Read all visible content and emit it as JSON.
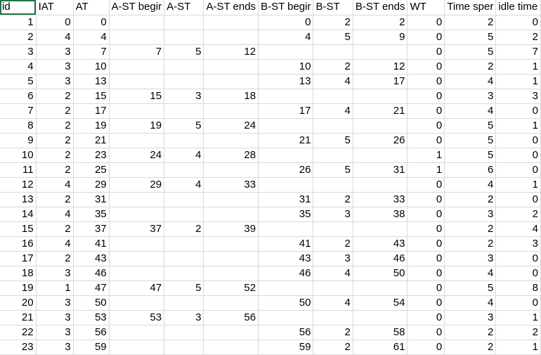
{
  "sheet": {
    "headers": [
      "id",
      "IAT",
      "AT",
      "A-ST begir",
      "A-ST",
      "A-ST ends",
      "B-ST begir",
      "B-ST",
      "B-ST ends",
      "WT",
      "Time sper",
      "idle time"
    ],
    "rows": [
      [
        "1",
        "0",
        "0",
        "",
        "",
        "",
        "0",
        "2",
        "2",
        "0",
        "2",
        "0"
      ],
      [
        "2",
        "4",
        "4",
        "",
        "",
        "",
        "4",
        "5",
        "9",
        "0",
        "5",
        "2"
      ],
      [
        "3",
        "3",
        "7",
        "7",
        "5",
        "12",
        "",
        "",
        "",
        "0",
        "5",
        "7"
      ],
      [
        "4",
        "3",
        "10",
        "",
        "",
        "",
        "10",
        "2",
        "12",
        "0",
        "2",
        "1"
      ],
      [
        "5",
        "3",
        "13",
        "",
        "",
        "",
        "13",
        "4",
        "17",
        "0",
        "4",
        "1"
      ],
      [
        "6",
        "2",
        "15",
        "15",
        "3",
        "18",
        "",
        "",
        "",
        "0",
        "3",
        "3"
      ],
      [
        "7",
        "2",
        "17",
        "",
        "",
        "",
        "17",
        "4",
        "21",
        "0",
        "4",
        "0"
      ],
      [
        "8",
        "2",
        "19",
        "19",
        "5",
        "24",
        "",
        "",
        "",
        "0",
        "5",
        "1"
      ],
      [
        "9",
        "2",
        "21",
        "",
        "",
        "",
        "21",
        "5",
        "26",
        "0",
        "5",
        "0"
      ],
      [
        "10",
        "2",
        "23",
        "24",
        "4",
        "28",
        "",
        "",
        "",
        "1",
        "5",
        "0"
      ],
      [
        "11",
        "2",
        "25",
        "",
        "",
        "",
        "26",
        "5",
        "31",
        "1",
        "6",
        "0"
      ],
      [
        "12",
        "4",
        "29",
        "29",
        "4",
        "33",
        "",
        "",
        "",
        "0",
        "4",
        "1"
      ],
      [
        "13",
        "2",
        "31",
        "",
        "",
        "",
        "31",
        "2",
        "33",
        "0",
        "2",
        "0"
      ],
      [
        "14",
        "4",
        "35",
        "",
        "",
        "",
        "35",
        "3",
        "38",
        "0",
        "3",
        "2"
      ],
      [
        "15",
        "2",
        "37",
        "37",
        "2",
        "39",
        "",
        "",
        "",
        "0",
        "2",
        "4"
      ],
      [
        "16",
        "4",
        "41",
        "",
        "",
        "",
        "41",
        "2",
        "43",
        "0",
        "2",
        "3"
      ],
      [
        "17",
        "2",
        "43",
        "",
        "",
        "",
        "43",
        "3",
        "46",
        "0",
        "3",
        "0"
      ],
      [
        "18",
        "3",
        "46",
        "",
        "",
        "",
        "46",
        "4",
        "50",
        "0",
        "4",
        "0"
      ],
      [
        "19",
        "1",
        "47",
        "47",
        "5",
        "52",
        "",
        "",
        "",
        "0",
        "5",
        "8"
      ],
      [
        "20",
        "3",
        "50",
        "",
        "",
        "",
        "50",
        "4",
        "54",
        "0",
        "4",
        "0"
      ],
      [
        "21",
        "3",
        "53",
        "53",
        "3",
        "56",
        "",
        "",
        "",
        "0",
        "3",
        "1"
      ],
      [
        "22",
        "3",
        "56",
        "",
        "",
        "",
        "56",
        "2",
        "58",
        "0",
        "2",
        "2"
      ],
      [
        "23",
        "3",
        "59",
        "",
        "",
        "",
        "59",
        "2",
        "61",
        "0",
        "2",
        "1"
      ]
    ]
  }
}
